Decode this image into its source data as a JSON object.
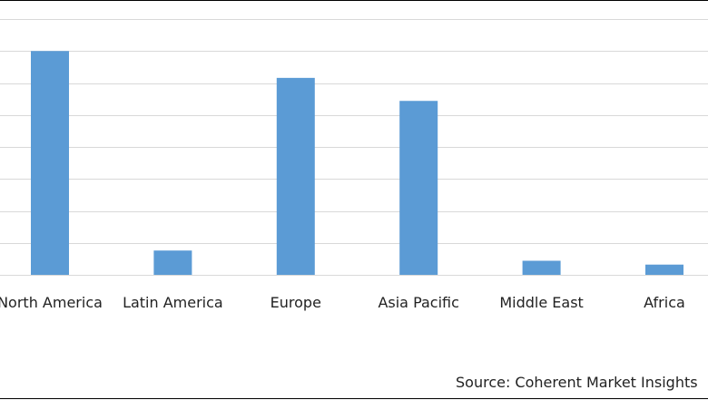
{
  "chart_data": {
    "type": "bar",
    "categories": [
      "North America",
      "Latin America",
      "Europe",
      "Asia Pacific",
      "Middle East",
      "Africa"
    ],
    "values": [
      35.0,
      3.8,
      30.8,
      27.2,
      2.2,
      1.6
    ],
    "title": "",
    "xlabel": "",
    "ylabel": "",
    "ylim": [
      0,
      40
    ],
    "grid": true,
    "legend": "none",
    "bar_color": "#5b9bd5",
    "grid_color": "#d9d9d9"
  },
  "source": "Source: Coherent Market Insights"
}
